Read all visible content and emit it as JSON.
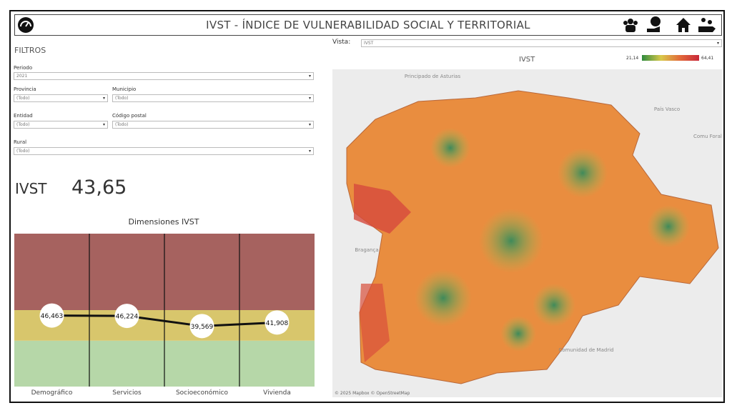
{
  "header": {
    "title": "IVST - ÍNDICE DE VULNERABILIDAD SOCIAL Y TERRITORIAL"
  },
  "filters": {
    "title": "FILTROS",
    "fields": [
      {
        "label": "Periodo",
        "value": "2021"
      },
      {
        "label": "Provincia",
        "value": "(Todo)"
      },
      {
        "label": "Municipio",
        "value": "(Todo)"
      },
      {
        "label": "Entidad",
        "value": "(Todo)"
      },
      {
        "label": "Código postal",
        "value": "(Todo)"
      },
      {
        "label": "Rural",
        "value": "(Todo)"
      }
    ]
  },
  "kpi": {
    "label": "IVST",
    "value": "43,65"
  },
  "view": {
    "label": "Vista:",
    "value": "IVST"
  },
  "map": {
    "title": "IVST",
    "legend_min": "21,14",
    "legend_max": "64,41",
    "places": [
      "Principado de Asturias",
      "País Vasco",
      "Comu Foral Nava",
      "Bragança",
      "Comunidad de Madrid"
    ],
    "attribution": "© 2025 Mapbox © OpenStreetMap"
  },
  "chart_data": {
    "type": "line",
    "title": "Dimensiones IVST",
    "categories": [
      "Demográfico",
      "Servicios",
      "Socioeconómico",
      "Vivienda"
    ],
    "values": [
      46.463,
      46.224,
      39.569,
      41.908
    ],
    "value_labels": [
      "46,463",
      "46,224",
      "39,569",
      "41,908"
    ],
    "color": "#111111",
    "ylim": [
      0,
      100
    ],
    "bands": [
      {
        "from": 0,
        "to": 30,
        "color": "#b6d7a8"
      },
      {
        "from": 30,
        "to": 50,
        "color": "#d8c66c"
      },
      {
        "from": 50,
        "to": 100,
        "color": "#a6625f"
      }
    ]
  }
}
